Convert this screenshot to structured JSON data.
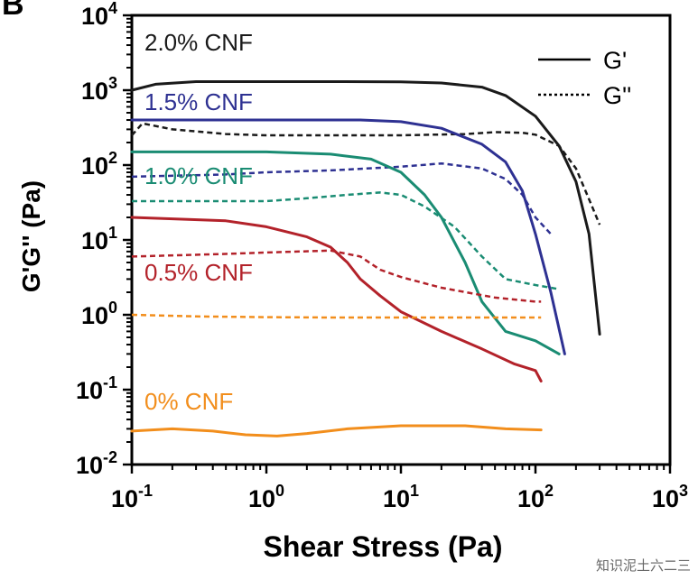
{
  "panel_label": "B",
  "watermark": "知识泥土六二三",
  "chart_data": {
    "type": "line",
    "title": "",
    "xlabel": "Shear Stress (Pa)",
    "ylabel": "G'G'' (Pa)",
    "x_scale": "log",
    "y_scale": "log",
    "xlim": [
      0.1,
      1000
    ],
    "ylim": [
      0.01,
      10000
    ],
    "x_ticks": [
      {
        "base": "10",
        "exp": "-1"
      },
      {
        "base": "10",
        "exp": "0"
      },
      {
        "base": "10",
        "exp": "1"
      },
      {
        "base": "10",
        "exp": "2"
      },
      {
        "base": "10",
        "exp": "3"
      }
    ],
    "y_ticks": [
      {
        "base": "10",
        "exp": "-2"
      },
      {
        "base": "10",
        "exp": "-1"
      },
      {
        "base": "10",
        "exp": "0"
      },
      {
        "base": "10",
        "exp": "1"
      },
      {
        "base": "10",
        "exp": "2"
      },
      {
        "base": "10",
        "exp": "3"
      },
      {
        "base": "10",
        "exp": "4"
      }
    ],
    "grid": false,
    "legend": {
      "position": "top-right",
      "entries": [
        {
          "label": "G'",
          "style": "solid"
        },
        {
          "label": "G''",
          "style": "dotted"
        }
      ]
    },
    "series": [
      {
        "name": "2.0% CNF",
        "color": "#1a1a1a",
        "G_prime": [
          [
            0.1,
            1000
          ],
          [
            0.15,
            1200
          ],
          [
            0.3,
            1300
          ],
          [
            1,
            1300
          ],
          [
            3,
            1300
          ],
          [
            10,
            1290
          ],
          [
            20,
            1250
          ],
          [
            40,
            1100
          ],
          [
            60,
            850
          ],
          [
            100,
            450
          ],
          [
            150,
            180
          ],
          [
            200,
            60
          ],
          [
            250,
            12
          ],
          [
            300,
            0.55
          ]
        ],
        "G_double_prime": [
          [
            0.1,
            250
          ],
          [
            0.12,
            360
          ],
          [
            0.2,
            300
          ],
          [
            0.5,
            260
          ],
          [
            1,
            250
          ],
          [
            3,
            250
          ],
          [
            10,
            250
          ],
          [
            30,
            260
          ],
          [
            50,
            275
          ],
          [
            80,
            270
          ],
          [
            100,
            255
          ],
          [
            150,
            180
          ],
          [
            200,
            90
          ],
          [
            250,
            35
          ],
          [
            300,
            16
          ]
        ]
      },
      {
        "name": "1.5% CNF",
        "color": "#2e3192",
        "G_prime": [
          [
            0.1,
            400
          ],
          [
            1,
            400
          ],
          [
            5,
            400
          ],
          [
            10,
            380
          ],
          [
            20,
            310
          ],
          [
            40,
            190
          ],
          [
            60,
            110
          ],
          [
            80,
            45
          ],
          [
            100,
            12
          ],
          [
            130,
            2
          ],
          [
            165,
            0.3
          ]
        ],
        "G_double_prime": [
          [
            0.1,
            70
          ],
          [
            0.5,
            75
          ],
          [
            1,
            80
          ],
          [
            3,
            85
          ],
          [
            10,
            95
          ],
          [
            20,
            105
          ],
          [
            40,
            90
          ],
          [
            60,
            65
          ],
          [
            80,
            40
          ],
          [
            100,
            20
          ],
          [
            130,
            12
          ]
        ]
      },
      {
        "name": "1.0% CNF",
        "color": "#1a8c73",
        "G_prime": [
          [
            0.1,
            150
          ],
          [
            1,
            150
          ],
          [
            3,
            140
          ],
          [
            6,
            120
          ],
          [
            10,
            80
          ],
          [
            15,
            40
          ],
          [
            20,
            20
          ],
          [
            30,
            5
          ],
          [
            40,
            1.5
          ],
          [
            60,
            0.6
          ],
          [
            100,
            0.45
          ],
          [
            150,
            0.3
          ]
        ],
        "G_double_prime": [
          [
            0.1,
            33
          ],
          [
            0.5,
            33
          ],
          [
            1,
            33
          ],
          [
            2,
            36
          ],
          [
            4,
            40
          ],
          [
            7,
            43
          ],
          [
            10,
            40
          ],
          [
            15,
            28
          ],
          [
            25,
            15
          ],
          [
            40,
            6
          ],
          [
            60,
            3
          ],
          [
            100,
            2.5
          ],
          [
            150,
            2.2
          ]
        ]
      },
      {
        "name": "0.5% CNF",
        "color": "#b3222a",
        "G_prime": [
          [
            0.1,
            20
          ],
          [
            0.5,
            18
          ],
          [
            1,
            15
          ],
          [
            2,
            11
          ],
          [
            3,
            8
          ],
          [
            4,
            5
          ],
          [
            5,
            3
          ],
          [
            7,
            1.8
          ],
          [
            10,
            1.1
          ],
          [
            20,
            0.6
          ],
          [
            40,
            0.35
          ],
          [
            70,
            0.22
          ],
          [
            100,
            0.18
          ],
          [
            110,
            0.13
          ]
        ],
        "G_double_prime": [
          [
            0.1,
            6
          ],
          [
            0.5,
            6.5
          ],
          [
            1,
            6.8
          ],
          [
            3,
            7.2
          ],
          [
            5,
            6
          ],
          [
            7,
            4
          ],
          [
            10,
            3.2
          ],
          [
            20,
            2.3
          ],
          [
            50,
            1.7
          ],
          [
            100,
            1.5
          ],
          [
            110,
            1.5
          ]
        ]
      },
      {
        "name": "0% CNF",
        "color": "#f28e1c",
        "G_prime": [
          [
            0.1,
            0.028
          ],
          [
            0.2,
            0.03
          ],
          [
            0.4,
            0.028
          ],
          [
            0.7,
            0.025
          ],
          [
            1.2,
            0.024
          ],
          [
            2,
            0.026
          ],
          [
            4,
            0.03
          ],
          [
            10,
            0.033
          ],
          [
            30,
            0.033
          ],
          [
            60,
            0.03
          ],
          [
            110,
            0.029
          ]
        ],
        "G_double_prime": [
          [
            0.1,
            1
          ],
          [
            0.3,
            0.95
          ],
          [
            1,
            0.93
          ],
          [
            3,
            0.92
          ],
          [
            10,
            0.92
          ],
          [
            30,
            0.92
          ],
          [
            100,
            0.92
          ],
          [
            110,
            0.92
          ]
        ]
      }
    ],
    "annotations": [
      {
        "text": "2.0% CNF",
        "color": "#1a1a1a"
      },
      {
        "text": "1.5% CNF",
        "color": "#2e3192"
      },
      {
        "text": "1.0% CNF",
        "color": "#1a8c73"
      },
      {
        "text": "0.5% CNF",
        "color": "#b3222a"
      },
      {
        "text": "0% CNF",
        "color": "#f28e1c"
      }
    ]
  }
}
